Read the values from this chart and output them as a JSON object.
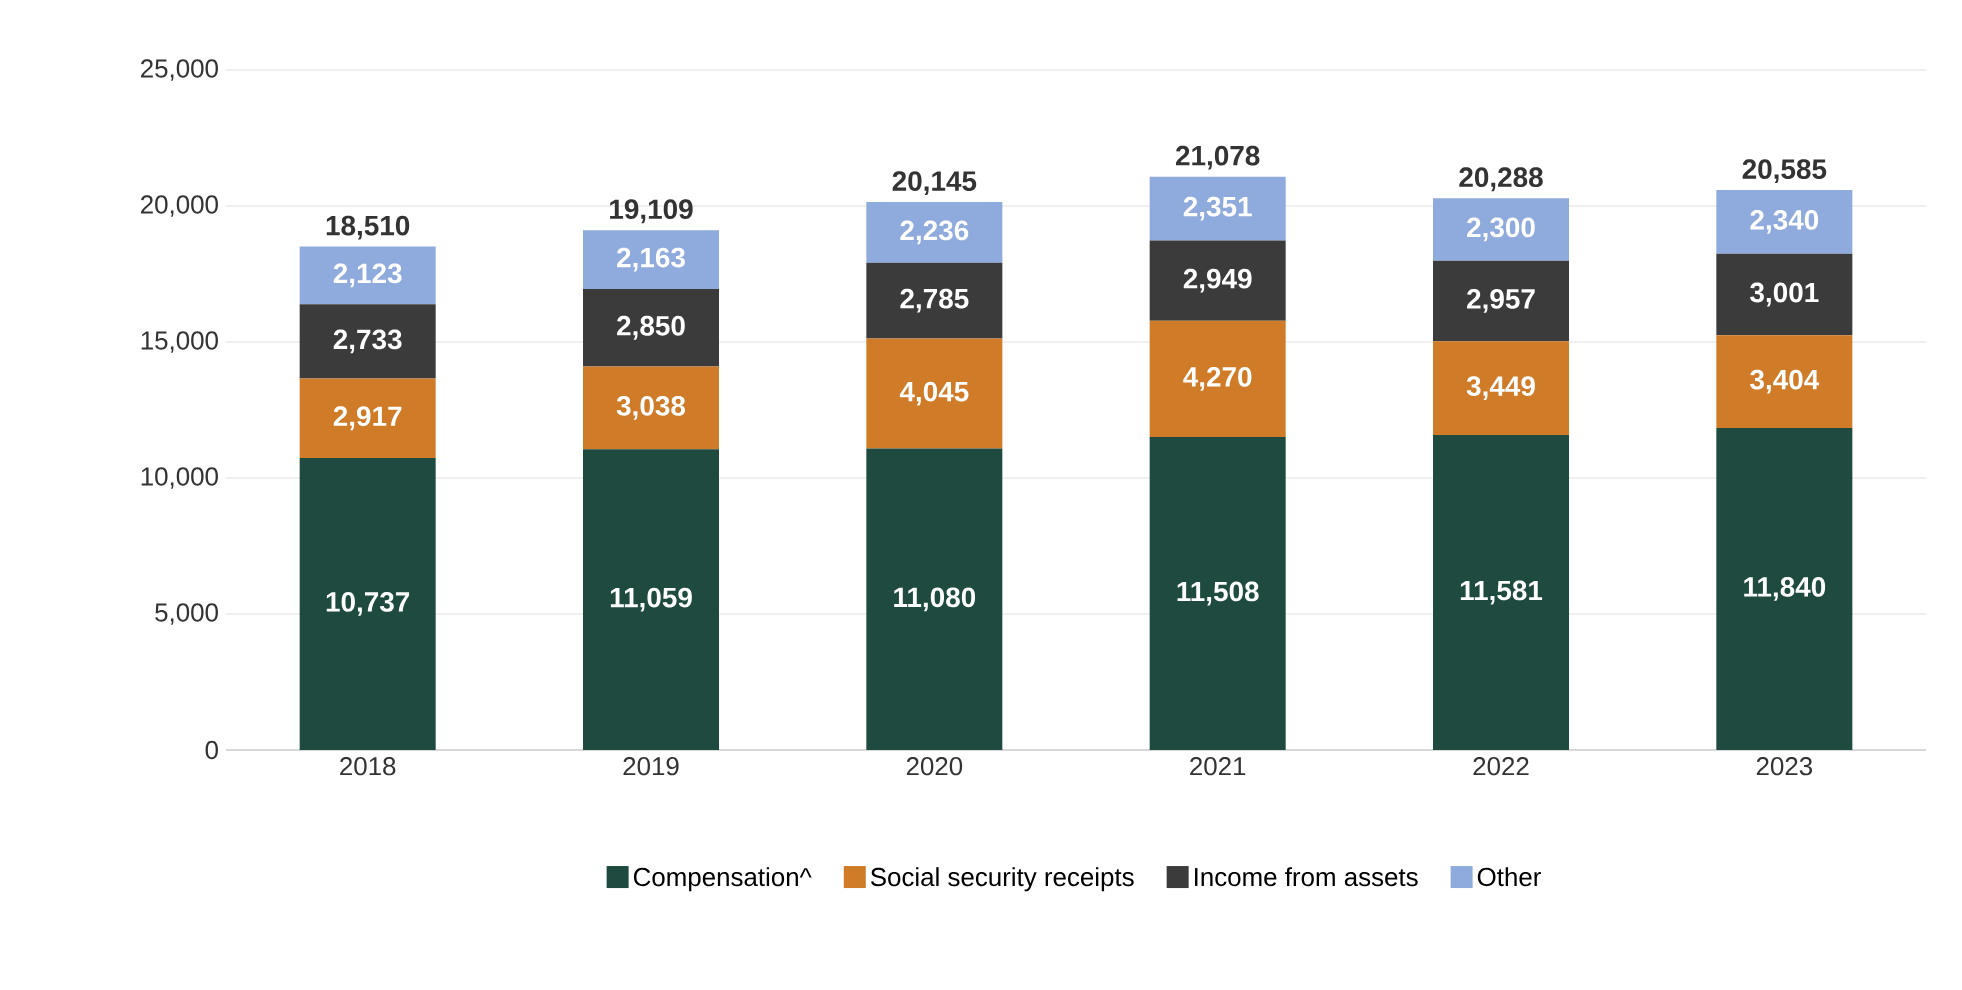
{
  "chart_data": {
    "type": "bar",
    "stacked": true,
    "categories": [
      "2018",
      "2019",
      "2020",
      "2021",
      "2022",
      "2023"
    ],
    "series": [
      {
        "name": "Compensation^",
        "color": "#1e4a3f",
        "values": [
          10737,
          11059,
          11080,
          11508,
          11581,
          11840
        ],
        "value_labels": [
          "10,737",
          "11,059",
          "11,080",
          "11,508",
          "11,581",
          "11,840"
        ]
      },
      {
        "name": "Social security receipts",
        "color": "#d07b27",
        "values": [
          2917,
          3038,
          4045,
          4270,
          3449,
          3404
        ],
        "value_labels": [
          "2,917",
          "3,038",
          "4,045",
          "4,270",
          "3,449",
          "3,404"
        ]
      },
      {
        "name": "Income from assets",
        "color": "#3b3b3b",
        "values": [
          2733,
          2850,
          2785,
          2949,
          2957,
          3001
        ],
        "value_labels": [
          "2,733",
          "2,850",
          "2,785",
          "2,949",
          "2,957",
          "3,001"
        ]
      },
      {
        "name": "Other",
        "color": "#8faadc",
        "values": [
          2123,
          2163,
          2236,
          2351,
          2300,
          2340
        ],
        "value_labels": [
          "2,123",
          "2,163",
          "2,236",
          "2,351",
          "2,300",
          "2,340"
        ]
      }
    ],
    "totals": [
      "18,510",
      "19,109",
      "20,145",
      "21,078",
      "20,288",
      "20,585"
    ],
    "ylim": [
      0,
      25000
    ],
    "yticks": [
      0,
      {
        "value": 5000,
        "label": "5,000"
      },
      {
        "value": 10000,
        "label": "10,000"
      },
      {
        "value": 15000,
        "label": "15,000"
      },
      {
        "value": 20000,
        "label": "20,000"
      },
      {
        "value": 25000,
        "label": "25,000"
      }
    ],
    "grid": "y",
    "legend": "bottom"
  }
}
